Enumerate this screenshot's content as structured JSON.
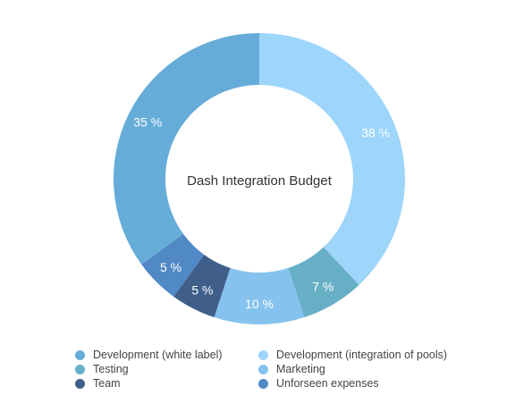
{
  "chart_data": {
    "type": "pie",
    "variant": "donut",
    "title": "Dash Integration Budget",
    "slices": [
      {
        "name": "Development (integration of pools)",
        "value": 38,
        "label": "38 %",
        "color": "#9dd5fb"
      },
      {
        "name": "Testing",
        "value": 7,
        "label": "7 %",
        "color": "#67afc5"
      },
      {
        "name": "Marketing",
        "value": 10,
        "label": "10 %",
        "color": "#85c3ee"
      },
      {
        "name": "Team",
        "value": 5,
        "label": "5 %",
        "color": "#3f5f8a"
      },
      {
        "name": "Unforseen expenses",
        "value": 5,
        "label": "5 %",
        "color": "#5089c6"
      },
      {
        "name": "Development (white label)",
        "value": 35,
        "label": "35 %",
        "color": "#66acd9"
      }
    ],
    "legend": [
      {
        "label": "Development (white label)",
        "color": "#66acd9"
      },
      {
        "label": "Development (integration of pools)",
        "color": "#9dd5fb"
      },
      {
        "label": "Testing",
        "color": "#67afc5"
      },
      {
        "label": "Marketing",
        "color": "#85c3ee"
      },
      {
        "label": "Team",
        "color": "#3f5f8a"
      },
      {
        "label": "Unforseen expenses",
        "color": "#5089c6"
      }
    ],
    "legend_position": "bottom"
  }
}
